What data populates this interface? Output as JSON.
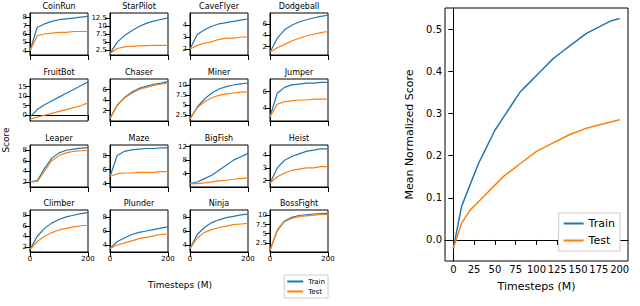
{
  "chart_data": [
    {
      "type": "line",
      "title": "CoinRun",
      "x": [
        0,
        25,
        50,
        75,
        100,
        125,
        150,
        175,
        200
      ],
      "xlim": [
        0,
        200
      ],
      "xticks": [
        0,
        200
      ],
      "ylim": [
        3.5,
        8.5
      ],
      "yticks": [
        4,
        5,
        6,
        7,
        8
      ],
      "tick_labels": "y",
      "series": [
        {
          "name": "Train",
          "color": "#1f77b4",
          "values": [
            4.0,
            6.8,
            7.2,
            7.5,
            7.7,
            7.8,
            7.9,
            8.0,
            8.1
          ]
        },
        {
          "name": "Test",
          "color": "#ff7f0e",
          "values": [
            4.0,
            5.8,
            6.0,
            6.1,
            6.2,
            6.2,
            6.3,
            6.3,
            6.3
          ]
        }
      ]
    },
    {
      "type": "line",
      "title": "StarPilot",
      "x": [
        0,
        25,
        50,
        75,
        100,
        125,
        150,
        175,
        200
      ],
      "xlim": [
        0,
        200
      ],
      "xticks": [
        0,
        200
      ],
      "ylim": [
        1,
        14
      ],
      "yticks": [
        2.5,
        5,
        7.5,
        10,
        12.5
      ],
      "tick_labels": "y",
      "series": [
        {
          "name": "Train",
          "color": "#1f77b4",
          "values": [
            1.5,
            5,
            7,
            8.5,
            9.8,
            10.8,
            11.5,
            12,
            12.5
          ]
        },
        {
          "name": "Test",
          "color": "#ff7f0e",
          "values": [
            1.5,
            3,
            3.5,
            3.7,
            3.8,
            3.9,
            4,
            4,
            4
          ]
        }
      ]
    },
    {
      "type": "line",
      "title": "CaveFlyer",
      "x": [
        0,
        25,
        50,
        75,
        100,
        125,
        150,
        175,
        200
      ],
      "xlim": [
        0,
        200
      ],
      "xticks": [
        0,
        200
      ],
      "ylim": [
        1.5,
        5
      ],
      "yticks": [
        2,
        3,
        4
      ],
      "tick_labels": "y",
      "series": [
        {
          "name": "Train",
          "color": "#1f77b4",
          "values": [
            2,
            3.2,
            3.6,
            3.9,
            4.1,
            4.2,
            4.3,
            4.4,
            4.5
          ]
        },
        {
          "name": "Test",
          "color": "#ff7f0e",
          "values": [
            2,
            2.3,
            2.5,
            2.6,
            2.8,
            2.9,
            2.9,
            3.0,
            3.0
          ]
        }
      ]
    },
    {
      "type": "line",
      "title": "Dodgeball",
      "x": [
        0,
        25,
        50,
        75,
        100,
        125,
        150,
        175,
        200
      ],
      "xlim": [
        0,
        200
      ],
      "xticks": [
        0,
        200
      ],
      "ylim": [
        0.5,
        8
      ],
      "yticks": [
        2,
        4,
        6
      ],
      "tick_labels": "y",
      "series": [
        {
          "name": "Train",
          "color": "#1f77b4",
          "values": [
            1,
            3.5,
            5,
            5.8,
            6.4,
            6.8,
            7.1,
            7.4,
            7.6
          ]
        },
        {
          "name": "Test",
          "color": "#ff7f0e",
          "values": [
            1,
            1.8,
            2.4,
            3,
            3.5,
            3.9,
            4.2,
            4.5,
            4.7
          ]
        }
      ]
    },
    {
      "type": "line",
      "title": "FruitBot",
      "x": [
        0,
        25,
        50,
        75,
        100,
        125,
        150,
        175,
        200
      ],
      "xlim": [
        0,
        200
      ],
      "xticks": [
        0,
        200
      ],
      "ylim": [
        -3,
        19
      ],
      "yticks": [
        0,
        5,
        10,
        15
      ],
      "tick_labels": "y",
      "series": [
        {
          "name": "Train",
          "color": "#1f77b4",
          "values": [
            -1,
            3,
            5.5,
            7.5,
            9.5,
            11.5,
            13.5,
            15.5,
            17.5
          ]
        },
        {
          "name": "Test",
          "color": "#ff7f0e",
          "values": [
            -2,
            -1,
            0,
            1,
            2,
            3,
            4,
            5,
            6.5
          ]
        }
      ]
    },
    {
      "type": "line",
      "title": "Chaser",
      "x": [
        0,
        25,
        50,
        75,
        100,
        125,
        150,
        175,
        200
      ],
      "xlim": [
        0,
        200
      ],
      "xticks": [
        0,
        200
      ],
      "ylim": [
        0,
        8
      ],
      "yticks": [
        2,
        4,
        6
      ],
      "tick_labels": "y",
      "series": [
        {
          "name": "Train",
          "color": "#1f77b4",
          "values": [
            0.5,
            3,
            4.5,
            5.5,
            6.2,
            6.6,
            7,
            7.2,
            7.5
          ]
        },
        {
          "name": "Test",
          "color": "#ff7f0e",
          "values": [
            0.5,
            3,
            4.4,
            5.3,
            6,
            6.4,
            6.8,
            7,
            7.2
          ]
        }
      ]
    },
    {
      "type": "line",
      "title": "Miner",
      "x": [
        0,
        25,
        50,
        75,
        100,
        125,
        150,
        175,
        200
      ],
      "xlim": [
        0,
        200
      ],
      "xticks": [
        0,
        200
      ],
      "ylim": [
        1,
        11.5
      ],
      "yticks": [
        2.5,
        5,
        7.5,
        10
      ],
      "tick_labels": "y",
      "series": [
        {
          "name": "Train",
          "color": "#1f77b4",
          "values": [
            1.5,
            4.5,
            6.5,
            8,
            9,
            9.6,
            10,
            10.3,
            10.5
          ]
        },
        {
          "name": "Test",
          "color": "#ff7f0e",
          "values": [
            1.5,
            4.3,
            5.8,
            6.8,
            7.4,
            7.8,
            8,
            8.2,
            8.3
          ]
        }
      ]
    },
    {
      "type": "line",
      "title": "Jumper",
      "x": [
        0,
        25,
        50,
        75,
        100,
        125,
        150,
        175,
        200
      ],
      "xlim": [
        0,
        200
      ],
      "xticks": [
        0,
        200
      ],
      "ylim": [
        2.5,
        7.5
      ],
      "yticks": [
        4,
        6
      ],
      "tick_labels": "y",
      "series": [
        {
          "name": "Train",
          "color": "#1f77b4",
          "values": [
            3,
            5.8,
            6.5,
            6.8,
            6.9,
            7,
            7,
            7.1,
            7.1
          ]
        },
        {
          "name": "Test",
          "color": "#ff7f0e",
          "values": [
            3,
            4.5,
            4.8,
            4.9,
            5,
            5,
            5.1,
            5.1,
            5.1
          ]
        }
      ]
    },
    {
      "type": "line",
      "title": "Leaper",
      "x": [
        0,
        25,
        50,
        75,
        100,
        125,
        150,
        175,
        200
      ],
      "xlim": [
        0,
        200
      ],
      "xticks": [
        0,
        200
      ],
      "ylim": [
        1,
        9
      ],
      "yticks": [
        2,
        4,
        6,
        8
      ],
      "tick_labels": "y",
      "series": [
        {
          "name": "Train",
          "color": "#1f77b4",
          "values": [
            2,
            2.2,
            4.5,
            6.5,
            7.5,
            8,
            8.2,
            8.4,
            8.5
          ]
        },
        {
          "name": "Test",
          "color": "#ff7f0e",
          "values": [
            2,
            2,
            4,
            6,
            7,
            7.5,
            7.8,
            7.9,
            8
          ]
        }
      ]
    },
    {
      "type": "line",
      "title": "Maze",
      "x": [
        0,
        25,
        50,
        75,
        100,
        125,
        150,
        175,
        200
      ],
      "xlim": [
        0,
        200
      ],
      "xticks": [
        0,
        200
      ],
      "ylim": [
        3.5,
        9.5
      ],
      "yticks": [
        4,
        6,
        8
      ],
      "tick_labels": "y",
      "series": [
        {
          "name": "Train",
          "color": "#1f77b4",
          "values": [
            5,
            8,
            8.6,
            8.8,
            8.9,
            9,
            9,
            9.1,
            9.1
          ]
        },
        {
          "name": "Test",
          "color": "#ff7f0e",
          "values": [
            5,
            5.4,
            5.5,
            5.5,
            5.6,
            5.6,
            5.6,
            5.7,
            5.7
          ]
        }
      ]
    },
    {
      "type": "line",
      "title": "BigFish",
      "x": [
        0,
        25,
        50,
        75,
        100,
        125,
        150,
        175,
        200
      ],
      "xlim": [
        0,
        200
      ],
      "xticks": [
        0,
        200
      ],
      "ylim": [
        0,
        12.5
      ],
      "yticks": [
        4,
        8,
        12
      ],
      "tick_labels": "y",
      "series": [
        {
          "name": "Train",
          "color": "#1f77b4",
          "values": [
            1,
            1.5,
            2.5,
            3.5,
            5,
            6.5,
            8,
            9,
            10
          ]
        },
        {
          "name": "Test",
          "color": "#ff7f0e",
          "values": [
            1,
            1,
            1.2,
            1.5,
            1.8,
            2,
            2.3,
            2.5,
            2.7
          ]
        }
      ]
    },
    {
      "type": "line",
      "title": "Heist",
      "x": [
        0,
        25,
        50,
        75,
        100,
        125,
        150,
        175,
        200
      ],
      "xlim": [
        0,
        200
      ],
      "xticks": [
        0,
        200
      ],
      "ylim": [
        1.5,
        4.8
      ],
      "yticks": [
        2,
        3,
        4
      ],
      "tick_labels": "y",
      "series": [
        {
          "name": "Train",
          "color": "#1f77b4",
          "values": [
            1.8,
            3,
            3.6,
            3.9,
            4.1,
            4.3,
            4.4,
            4.5,
            4.5
          ]
        },
        {
          "name": "Test",
          "color": "#ff7f0e",
          "values": [
            1.8,
            2.3,
            2.6,
            2.8,
            2.9,
            3,
            3,
            3.1,
            3.1
          ]
        }
      ]
    },
    {
      "type": "line",
      "title": "Climber",
      "x": [
        0,
        25,
        50,
        75,
        100,
        125,
        150,
        175,
        200
      ],
      "xlim": [
        0,
        200
      ],
      "xticks": [
        0,
        200
      ],
      "ylim": [
        1,
        9
      ],
      "yticks": [
        2,
        4,
        6,
        8
      ],
      "series": [
        {
          "name": "Train",
          "color": "#1f77b4",
          "values": [
            1.5,
            4,
            5.5,
            6.5,
            7.2,
            7.7,
            8,
            8.3,
            8.5
          ]
        },
        {
          "name": "Test",
          "color": "#ff7f0e",
          "values": [
            1.5,
            3,
            4,
            4.7,
            5.2,
            5.5,
            5.8,
            6,
            6.1
          ]
        }
      ]
    },
    {
      "type": "line",
      "title": "Plunder",
      "x": [
        0,
        25,
        50,
        75,
        100,
        125,
        150,
        175,
        200
      ],
      "xlim": [
        0,
        200
      ],
      "xticks": [
        0,
        200
      ],
      "ylim": [
        3,
        9
      ],
      "yticks": [
        4,
        6,
        8
      ],
      "series": [
        {
          "name": "Train",
          "color": "#1f77b4",
          "values": [
            3.5,
            4.5,
            5,
            5.5,
            5.8,
            6,
            6.2,
            6.4,
            6.6
          ]
        },
        {
          "name": "Test",
          "color": "#ff7f0e",
          "values": [
            3.5,
            4,
            4.3,
            4.6,
            4.9,
            5.1,
            5.3,
            5.5,
            5.6
          ]
        }
      ]
    },
    {
      "type": "line",
      "title": "Ninja",
      "x": [
        0,
        25,
        50,
        75,
        100,
        125,
        150,
        175,
        200
      ],
      "xlim": [
        0,
        200
      ],
      "xticks": [
        0,
        200
      ],
      "ylim": [
        3,
        9
      ],
      "yticks": [
        4,
        6,
        8
      ],
      "series": [
        {
          "name": "Train",
          "color": "#1f77b4",
          "values": [
            3.5,
            5.5,
            6.5,
            7.2,
            7.6,
            7.9,
            8.1,
            8.3,
            8.4
          ]
        },
        {
          "name": "Test",
          "color": "#ff7f0e",
          "values": [
            3.5,
            5,
            5.8,
            6.2,
            6.5,
            6.7,
            6.9,
            7,
            7.1
          ]
        }
      ]
    },
    {
      "type": "line",
      "title": "BossFight",
      "x": [
        0,
        25,
        50,
        75,
        100,
        125,
        150,
        175,
        200
      ],
      "xlim": [
        0,
        200
      ],
      "xticks": [
        0,
        200
      ],
      "ylim": [
        0,
        11.5
      ],
      "yticks": [
        2.5,
        5,
        7.5,
        10
      ],
      "series": [
        {
          "name": "Train",
          "color": "#1f77b4",
          "values": [
            0.5,
            6,
            8.5,
            9.5,
            10,
            10.2,
            10.4,
            10.5,
            10.6
          ]
        },
        {
          "name": "Test",
          "color": "#ff7f0e",
          "values": [
            0.5,
            5.8,
            8.3,
            9.2,
            9.7,
            9.9,
            10.1,
            10.2,
            10.3
          ]
        }
      ]
    },
    {
      "type": "line",
      "xlabel": "Timesteps (M)",
      "ylabel": "Mean Normalized Score",
      "legend": "lower right",
      "x": [
        0,
        10,
        20,
        30,
        40,
        50,
        60,
        70,
        80,
        90,
        100,
        110,
        120,
        130,
        140,
        150,
        160,
        170,
        180,
        190,
        200
      ],
      "xlim": [
        -10,
        210
      ],
      "xticks": [
        0,
        25,
        50,
        75,
        100,
        125,
        150,
        175,
        200
      ],
      "ylim": [
        -0.05,
        0.55
      ],
      "yticks": [
        {
          "value": 0,
          "label": "0.0"
        },
        0.1,
        0.2,
        0.3,
        0.4,
        0.5
      ],
      "series": [
        {
          "name": "Train",
          "color": "#1f77b4",
          "values": [
            -0.02,
            0.08,
            0.13,
            0.18,
            0.22,
            0.26,
            0.29,
            0.32,
            0.35,
            0.37,
            0.39,
            0.41,
            0.43,
            0.445,
            0.46,
            0.475,
            0.49,
            0.5,
            0.51,
            0.52,
            0.525
          ]
        },
        {
          "name": "Test",
          "color": "#ff7f0e",
          "values": [
            -0.02,
            0.04,
            0.07,
            0.09,
            0.11,
            0.13,
            0.15,
            0.165,
            0.18,
            0.195,
            0.21,
            0.22,
            0.23,
            0.24,
            0.25,
            0.257,
            0.265,
            0.27,
            0.275,
            0.28,
            0.285
          ]
        }
      ]
    }
  ],
  "shared_axes": {
    "ylabel": "Score",
    "xlabel": "Timesteps (M)",
    "legend": "lower right"
  }
}
